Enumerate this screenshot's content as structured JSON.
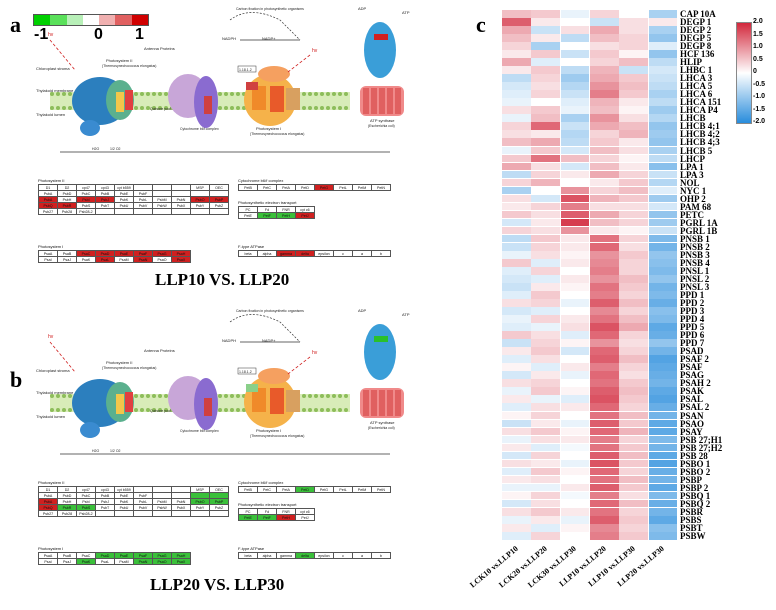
{
  "panels": {
    "a": {
      "letter": "a",
      "title": "LLP10 VS. LLP20"
    },
    "b": {
      "letter": "b",
      "title": "LLP20 VS. LLP30"
    },
    "c": {
      "letter": "c"
    }
  },
  "color_legend": {
    "labels": [
      "-1",
      "0",
      "1"
    ],
    "colors": [
      "#00d000",
      "#5ae05a",
      "#b8f0b8",
      "#ffffff",
      "#f0b0b0",
      "#e06060",
      "#d00000"
    ]
  },
  "pathway_text": {
    "carbon_fixation": "Carbon fixation in photosynthetic organisms",
    "antenna": "Antenna Proteins",
    "psii": "Photosystem II",
    "psii_sub": "(Thermosynechococcus elongatus)",
    "psi": "Photosystem I",
    "psi_sub": "(Thermosynechococcus elongatus)",
    "atp_synthase": "ATP synthase",
    "atp_sub": "(Escherichia coli)",
    "chloroplast": "Chloroplast stroma",
    "membrane": "Thylakoid membrane",
    "lumen": "Thylakoid lumen",
    "cytb6f": "Cytochrome b6f complex",
    "quinone": "Quinone pool",
    "nadph": "NADPH",
    "nadp": "NADP+",
    "adp": "ADP",
    "atp": "ATP",
    "hv": "hv",
    "h2o": "H2O",
    "o2": "1/2 O2",
    "ec": "1.18.1.2"
  },
  "gene_tables": {
    "psii_title": "Photosystem II",
    "psii_header": [
      "D1",
      "D2",
      "cp47",
      "cp43",
      "cyt b559",
      "",
      "",
      "",
      "MSP",
      "OEC"
    ],
    "psii_rows": [
      [
        "PsbA",
        "PsbD",
        "PsbC",
        "PsbB",
        "PsbE",
        "PsbF",
        "",
        "",
        "",
        ""
      ],
      [
        "PsbA",
        "PsbH",
        "PsbI",
        "PsbJ",
        "PsbK",
        "PsbL",
        "PsbM",
        "PsbN",
        "PsbO",
        "PsbP"
      ],
      [
        "PsbQ",
        "PsbR",
        "PsbS",
        "PsbT",
        "PsbU",
        "PsbV",
        "PsbW",
        "PsbX",
        "PsbY",
        "PsbZ"
      ],
      [
        "Psb27",
        "Psb28",
        "Psb28-2",
        "",
        "",
        "",
        "",
        "",
        "",
        ""
      ]
    ],
    "psi_title": "Photosystem I",
    "psi_rows": [
      [
        "PsaA",
        "PsaB",
        "PsaC",
        "PsaD",
        "PsaE",
        "PsaF",
        "PsaG",
        "PsaH"
      ],
      [
        "PsaI",
        "PsaJ",
        "PsaK",
        "PsaL",
        "PsaM",
        "PsaN",
        "PsaO",
        "PsaX"
      ]
    ],
    "cyt_title": "Cytochrome b6/f complex",
    "cyt_row": [
      "PetB",
      "PetC",
      "PetA",
      "PetD",
      "PetG",
      "PetL",
      "PetM",
      "PetN"
    ],
    "pet_title": "Photosynthetic electron transport",
    "pet_header": [
      "PC",
      "Fd",
      "FNR",
      "cyt c6"
    ],
    "pet_row": [
      "PetE",
      "PetF",
      "PetH",
      "PetJ"
    ],
    "atp_title": "F-type ATPase",
    "atp_row": [
      "beta",
      "alpha",
      "gamma",
      "delta",
      "epsilon",
      "c",
      "a",
      "b"
    ]
  },
  "heatmap": {
    "columns": [
      "LCK10 vs.LLP10",
      "LCK20 vs.LLP20",
      "LCK30 vs.LLP30",
      "LLP10 vs.LLP20",
      "LLP10 vs.LLP30",
      "LLP20 vs.LLP30"
    ],
    "rows": [
      "CAP 10A",
      "DEGP 1",
      "DEGP 2",
      "DEGP 5",
      "DEGP 8",
      "HCF 136",
      "HLIP",
      "LHBC 1",
      "LHCA 3",
      "LHCA 5",
      "LHCA 6",
      "LHCA 151",
      "LHCA P4",
      "LHCB",
      "LHCB 4;1",
      "LHCB 4;2",
      "LHCB 4;3",
      "LHCB 5",
      "LHCP",
      "LPA 1",
      "LPA 3",
      "NOL",
      "NYC 1",
      "OHP 2",
      "PAM 68",
      "PETC",
      "PGRL 1A",
      "PGRL 1B",
      "PNSB 1",
      "PNSB 2",
      "PNSB 3",
      "PNSB 4",
      "PNSL 1",
      "PNSL 2",
      "PNSL 3",
      "PPD 1",
      "PPD 2",
      "PPD 3",
      "PPD 4",
      "PPD 5",
      "PPD 6",
      "PPD 7",
      "PSAD",
      "PSAF 2",
      "PSAF",
      "PSAG",
      "PSAH 2",
      "PSAK",
      "PSAL",
      "PSAL 2",
      "PSAN",
      "PSAO",
      "PSAY",
      "PSB 27;H1",
      "PSB 27;H2",
      "PSB 28",
      "PSBO 1",
      "PSBO 2",
      "PSBP",
      "PSBP 2",
      "PSBQ 1",
      "PSBQ 2",
      "PSBR",
      "PSBS",
      "PSBT",
      "PSBW"
    ],
    "scale_ticks": [
      "2.0",
      "1.5",
      "1.0",
      "0.5",
      "0",
      "-0.5",
      "-1.0",
      "-1.5",
      "-2.0"
    ],
    "values": [
      [
        0.6,
        0.5,
        -0.2,
        0.4,
        0.0,
        -0.8
      ],
      [
        1.5,
        0.2,
        0.0,
        -0.5,
        0.3,
        0.2
      ],
      [
        0.8,
        -0.5,
        0.3,
        0.8,
        0.3,
        -0.8
      ],
      [
        0.6,
        0.2,
        -0.6,
        0.6,
        0.4,
        -1.0
      ],
      [
        0.4,
        -0.8,
        0.0,
        0.3,
        0.4,
        -0.3
      ],
      [
        0.2,
        0.5,
        -0.5,
        0.5,
        0.1,
        -1.0
      ],
      [
        0.8,
        -0.3,
        0.0,
        0.4,
        0.6,
        -0.6
      ],
      [
        0.2,
        0.5,
        -0.6,
        0.7,
        -0.5,
        -0.4
      ],
      [
        -0.6,
        0.4,
        -0.9,
        0.8,
        0.5,
        -0.5
      ],
      [
        -0.4,
        0.3,
        -0.7,
        1.0,
        0.6,
        -0.6
      ],
      [
        -0.3,
        0.4,
        -0.5,
        1.2,
        0.5,
        -0.8
      ],
      [
        -0.2,
        0.0,
        -0.3,
        0.7,
        0.2,
        -0.6
      ],
      [
        0.3,
        0.5,
        -0.2,
        0.6,
        0.1,
        -0.9
      ],
      [
        -0.2,
        0.6,
        -0.8,
        1.0,
        0.3,
        -0.7
      ],
      [
        0.4,
        1.4,
        -0.5,
        0.8,
        0.6,
        -1.0
      ],
      [
        0.3,
        0.2,
        -0.7,
        0.4,
        0.7,
        -0.9
      ],
      [
        0.6,
        0.8,
        -0.6,
        0.5,
        0.2,
        -1.0
      ],
      [
        -0.2,
        0.5,
        -0.4,
        0.6,
        0.3,
        -0.8
      ],
      [
        0.5,
        1.3,
        0.6,
        0.4,
        0.1,
        -0.6
      ],
      [
        0.8,
        0.3,
        -0.4,
        0.6,
        0.2,
        -1.1
      ],
      [
        -0.6,
        0.4,
        0.2,
        0.8,
        0.4,
        -0.5
      ],
      [
        0.4,
        0.7,
        0.0,
        0.2,
        0.5,
        -0.7
      ],
      [
        -0.8,
        0.0,
        1.0,
        0.4,
        0.6,
        -0.3
      ],
      [
        0.3,
        -0.4,
        1.6,
        0.7,
        0.5,
        -0.9
      ],
      [
        0.2,
        0.4,
        1.2,
        0.3,
        0.3,
        -0.4
      ],
      [
        0.5,
        0.3,
        1.5,
        0.8,
        0.4,
        -1.0
      ],
      [
        -0.4,
        0.2,
        1.8,
        0.6,
        0.4,
        -0.9
      ],
      [
        0.4,
        0.3,
        1.0,
        0.2,
        0.1,
        -0.5
      ],
      [
        -0.6,
        0.5,
        0.2,
        1.3,
        0.4,
        -1.2
      ],
      [
        -0.5,
        0.4,
        0.2,
        1.4,
        0.3,
        -1.3
      ],
      [
        -0.2,
        0.3,
        0.1,
        1.0,
        0.5,
        -1.0
      ],
      [
        0.5,
        -0.3,
        0.2,
        1.1,
        0.4,
        -1.1
      ],
      [
        -0.3,
        0.4,
        0.0,
        1.2,
        0.4,
        -1.2
      ],
      [
        -0.4,
        -0.3,
        0.2,
        1.0,
        0.6,
        -1.0
      ],
      [
        -0.5,
        0.2,
        0.1,
        1.3,
        0.5,
        -1.3
      ],
      [
        -0.3,
        0.5,
        0.0,
        1.2,
        0.4,
        -1.2
      ],
      [
        0.3,
        0.4,
        -0.2,
        1.5,
        0.6,
        -1.4
      ],
      [
        -0.4,
        -0.3,
        0.0,
        1.1,
        0.4,
        -1.1
      ],
      [
        -0.2,
        0.4,
        0.2,
        1.3,
        0.6,
        -1.2
      ],
      [
        -0.3,
        -0.2,
        0.3,
        1.6,
        0.8,
        -1.5
      ],
      [
        0.5,
        0.3,
        -0.3,
        1.4,
        0.4,
        -1.4
      ],
      [
        -0.5,
        0.4,
        0.1,
        1.0,
        0.3,
        -1.0
      ],
      [
        0.2,
        0.5,
        -0.4,
        1.4,
        0.4,
        -1.3
      ],
      [
        -0.3,
        0.3,
        0.0,
        1.5,
        0.6,
        -1.6
      ],
      [
        0.1,
        -0.3,
        0.2,
        1.2,
        0.4,
        -1.5
      ],
      [
        -0.4,
        0.2,
        -0.2,
        1.4,
        0.3,
        -1.4
      ],
      [
        0.3,
        0.4,
        0.0,
        1.3,
        0.5,
        -1.3
      ],
      [
        -0.2,
        0.5,
        0.1,
        1.5,
        0.6,
        -1.5
      ],
      [
        0.2,
        -0.2,
        -0.3,
        1.6,
        0.5,
        -1.6
      ],
      [
        -0.3,
        0.3,
        0.2,
        1.4,
        0.4,
        -1.4
      ],
      [
        0.1,
        0.4,
        0.0,
        1.3,
        0.6,
        -1.3
      ],
      [
        -0.5,
        0.2,
        -0.2,
        1.5,
        0.5,
        -1.5
      ],
      [
        0.3,
        0.5,
        0.1,
        1.4,
        0.7,
        -1.5
      ],
      [
        -0.2,
        0.3,
        0.2,
        1.2,
        0.4,
        -1.2
      ],
      [
        0.2,
        -0.3,
        -0.1,
        1.3,
        0.5,
        -1.3
      ],
      [
        -0.4,
        0.4,
        0.0,
        1.5,
        0.6,
        -1.5
      ],
      [
        0.3,
        0.2,
        -0.2,
        1.6,
        0.5,
        -1.6
      ],
      [
        -0.3,
        0.5,
        0.1,
        1.4,
        0.4,
        -1.4
      ],
      [
        0.2,
        0.3,
        0.0,
        1.3,
        0.6,
        -1.3
      ],
      [
        -0.2,
        -0.2,
        0.2,
        1.5,
        0.5,
        -1.5
      ],
      [
        0.1,
        0.4,
        -0.1,
        1.2,
        0.3,
        -1.2
      ],
      [
        -0.4,
        0.3,
        0.0,
        1.4,
        0.6,
        -1.4
      ],
      [
        0.3,
        0.5,
        0.2,
        1.3,
        0.4,
        -1.3
      ],
      [
        -0.2,
        0.2,
        -0.2,
        1.5,
        0.5,
        -1.5
      ],
      [
        0.2,
        -0.3,
        0.1,
        1.1,
        0.4,
        -1.1
      ],
      [
        -0.3,
        0.4,
        0.0,
        1.2,
        0.5,
        -1.2
      ]
    ]
  }
}
